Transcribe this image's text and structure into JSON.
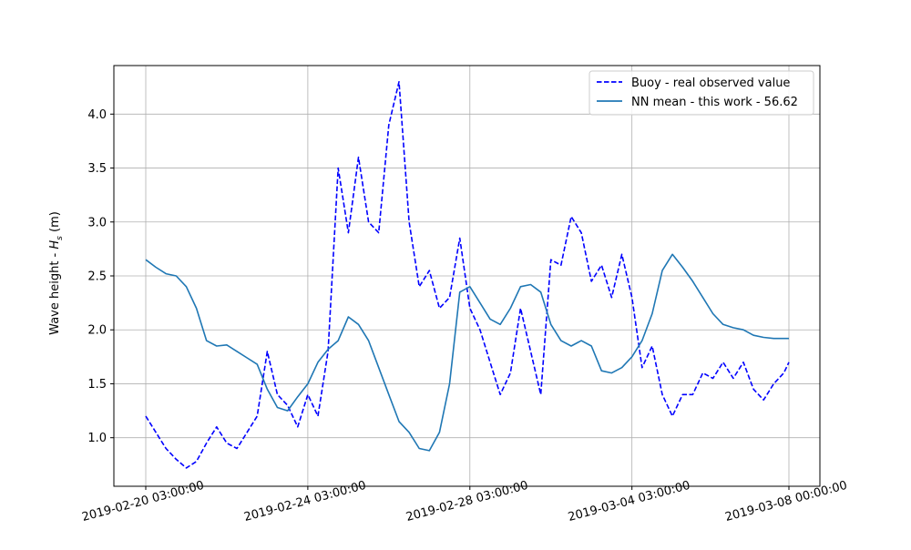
{
  "chart_data": {
    "type": "line",
    "title": "",
    "xlabel": "",
    "ylabel": "Wave height - H_s (m)",
    "ylabel_parts": {
      "main": "Wave height - ",
      "symbol": "H",
      "subscript": "s",
      "unit": " (m)"
    },
    "xlim": [
      "2019-02-20 03:00:00",
      "2019-03-08 00:00:00"
    ],
    "ylim": [
      0.55,
      4.45
    ],
    "grid": true,
    "legend_position": "top-right",
    "x_ticks": [
      "2019-02-20 03:00:00",
      "2019-02-24 03:00:00",
      "2019-02-28 03:00:00",
      "2019-03-04 03:00:00",
      "2019-03-08 00:00:00"
    ],
    "y_ticks": [
      1.0,
      1.5,
      2.0,
      2.5,
      3.0,
      3.5,
      4.0
    ],
    "y_tick_labels": [
      "1.0",
      "1.5",
      "2.0",
      "2.5",
      "3.0",
      "3.5",
      "4.0"
    ],
    "series": [
      {
        "name": "Buoy - real observed value",
        "color": "#0000ff",
        "style": "dashed",
        "x": [
          "2019-02-20 03:00:00",
          "2019-02-20 09:00:00",
          "2019-02-20 15:00:00",
          "2019-02-20 21:00:00",
          "2019-02-21 03:00:00",
          "2019-02-21 09:00:00",
          "2019-02-21 15:00:00",
          "2019-02-21 21:00:00",
          "2019-02-22 03:00:00",
          "2019-02-22 09:00:00",
          "2019-02-22 15:00:00",
          "2019-02-22 21:00:00",
          "2019-02-23 03:00:00",
          "2019-02-23 09:00:00",
          "2019-02-23 15:00:00",
          "2019-02-23 21:00:00",
          "2019-02-24 03:00:00",
          "2019-02-24 09:00:00",
          "2019-02-24 15:00:00",
          "2019-02-24 21:00:00",
          "2019-02-25 03:00:00",
          "2019-02-25 09:00:00",
          "2019-02-25 15:00:00",
          "2019-02-25 21:00:00",
          "2019-02-26 03:00:00",
          "2019-02-26 09:00:00",
          "2019-02-26 15:00:00",
          "2019-02-26 21:00:00",
          "2019-02-27 03:00:00",
          "2019-02-27 09:00:00",
          "2019-02-27 15:00:00",
          "2019-02-27 21:00:00",
          "2019-02-28 03:00:00",
          "2019-02-28 09:00:00",
          "2019-02-28 15:00:00",
          "2019-02-28 21:00:00",
          "2019-03-01 03:00:00",
          "2019-03-01 09:00:00",
          "2019-03-01 15:00:00",
          "2019-03-01 21:00:00",
          "2019-03-02 03:00:00",
          "2019-03-02 09:00:00",
          "2019-03-02 15:00:00",
          "2019-03-02 21:00:00",
          "2019-03-03 03:00:00",
          "2019-03-03 09:00:00",
          "2019-03-03 15:00:00",
          "2019-03-03 21:00:00",
          "2019-03-04 03:00:00",
          "2019-03-04 09:00:00",
          "2019-03-04 15:00:00",
          "2019-03-04 21:00:00",
          "2019-03-05 03:00:00",
          "2019-03-05 09:00:00",
          "2019-03-05 15:00:00",
          "2019-03-05 21:00:00",
          "2019-03-06 03:00:00",
          "2019-03-06 09:00:00",
          "2019-03-06 15:00:00",
          "2019-03-06 21:00:00",
          "2019-03-07 03:00:00",
          "2019-03-07 09:00:00",
          "2019-03-07 15:00:00",
          "2019-03-07 21:00:00",
          "2019-03-08 00:00:00"
        ],
        "y": [
          1.2,
          1.05,
          0.9,
          0.8,
          0.72,
          0.78,
          0.95,
          1.1,
          0.95,
          0.9,
          1.05,
          1.2,
          1.8,
          1.4,
          1.3,
          1.1,
          1.4,
          1.2,
          1.8,
          3.5,
          2.9,
          3.6,
          3.0,
          2.9,
          3.9,
          4.3,
          3.0,
          2.4,
          2.55,
          2.2,
          2.3,
          2.85,
          2.2,
          2.0,
          1.7,
          1.4,
          1.6,
          2.2,
          1.8,
          1.4,
          2.65,
          2.6,
          3.05,
          2.9,
          2.45,
          2.6,
          2.3,
          2.7,
          2.3,
          1.65,
          1.85,
          1.4,
          1.2,
          1.4,
          1.4,
          1.6,
          1.55,
          1.7,
          1.55,
          1.7,
          1.45,
          1.35,
          1.5,
          1.6,
          1.7
        ]
      },
      {
        "name": "NN mean - this work - 56.62",
        "color": "#1f77b4",
        "style": "solid",
        "x": [
          "2019-02-20 03:00:00",
          "2019-02-20 09:00:00",
          "2019-02-20 15:00:00",
          "2019-02-20 21:00:00",
          "2019-02-21 03:00:00",
          "2019-02-21 09:00:00",
          "2019-02-21 15:00:00",
          "2019-02-21 21:00:00",
          "2019-02-22 03:00:00",
          "2019-02-22 09:00:00",
          "2019-02-22 15:00:00",
          "2019-02-22 21:00:00",
          "2019-02-23 03:00:00",
          "2019-02-23 09:00:00",
          "2019-02-23 15:00:00",
          "2019-02-23 21:00:00",
          "2019-02-24 03:00:00",
          "2019-02-24 09:00:00",
          "2019-02-24 15:00:00",
          "2019-02-24 21:00:00",
          "2019-02-25 03:00:00",
          "2019-02-25 09:00:00",
          "2019-02-25 15:00:00",
          "2019-02-25 21:00:00",
          "2019-02-26 03:00:00",
          "2019-02-26 09:00:00",
          "2019-02-26 15:00:00",
          "2019-02-26 21:00:00",
          "2019-02-27 03:00:00",
          "2019-02-27 09:00:00",
          "2019-02-27 15:00:00",
          "2019-02-27 21:00:00",
          "2019-02-28 03:00:00",
          "2019-02-28 09:00:00",
          "2019-02-28 15:00:00",
          "2019-02-28 21:00:00",
          "2019-03-01 03:00:00",
          "2019-03-01 09:00:00",
          "2019-03-01 15:00:00",
          "2019-03-01 21:00:00",
          "2019-03-02 03:00:00",
          "2019-03-02 09:00:00",
          "2019-03-02 15:00:00",
          "2019-03-02 21:00:00",
          "2019-03-03 03:00:00",
          "2019-03-03 09:00:00",
          "2019-03-03 15:00:00",
          "2019-03-03 21:00:00",
          "2019-03-04 03:00:00",
          "2019-03-04 09:00:00",
          "2019-03-04 15:00:00",
          "2019-03-04 21:00:00",
          "2019-03-05 03:00:00",
          "2019-03-05 09:00:00",
          "2019-03-05 15:00:00",
          "2019-03-05 21:00:00",
          "2019-03-06 03:00:00",
          "2019-03-06 09:00:00",
          "2019-03-06 15:00:00",
          "2019-03-06 21:00:00",
          "2019-03-07 03:00:00",
          "2019-03-07 09:00:00",
          "2019-03-07 15:00:00",
          "2019-03-07 21:00:00",
          "2019-03-08 00:00:00"
        ],
        "y": [
          2.65,
          2.58,
          2.52,
          2.5,
          2.4,
          2.2,
          1.9,
          1.85,
          1.86,
          1.8,
          1.74,
          1.68,
          1.45,
          1.28,
          1.25,
          1.38,
          1.5,
          1.7,
          1.82,
          1.9,
          2.12,
          2.05,
          1.9,
          1.65,
          1.4,
          1.15,
          1.05,
          0.9,
          0.88,
          1.05,
          1.5,
          2.35,
          2.4,
          2.25,
          2.1,
          2.05,
          2.2,
          2.4,
          2.42,
          2.35,
          2.05,
          1.9,
          1.85,
          1.9,
          1.85,
          1.62,
          1.6,
          1.65,
          1.75,
          1.9,
          2.15,
          2.55,
          2.7,
          2.58,
          2.45,
          2.3,
          2.15,
          2.05,
          2.02,
          2.0,
          1.95,
          1.93,
          1.92,
          1.92,
          1.92
        ]
      }
    ]
  }
}
